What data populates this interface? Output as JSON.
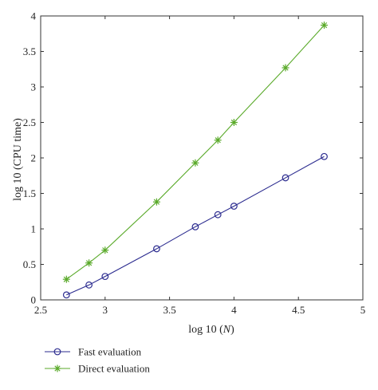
{
  "chart_data": {
    "type": "line",
    "title": "",
    "xlabel": "log 10 (",
    "xlabel_var": "N",
    "xlabel_close": ")",
    "ylabel": "log 10 (CPU time)",
    "xlim": [
      2.5,
      5
    ],
    "ylim": [
      0,
      4
    ],
    "xticks": [
      "2.5",
      "3",
      "3.5",
      "4",
      "4.5",
      "5"
    ],
    "yticks": [
      "0",
      "0.5",
      "1",
      "1.5",
      "2",
      "2.5",
      "3",
      "3.5",
      "4"
    ],
    "grid": false,
    "legend_position": "below-left",
    "series": [
      {
        "name": "Fast evaluation",
        "color": "#2b2b8f",
        "marker": "circle",
        "x": [
          2.7,
          2.875,
          3.0,
          3.4,
          3.7,
          3.875,
          4.0,
          4.4,
          4.7
        ],
        "y": [
          0.07,
          0.21,
          0.33,
          0.72,
          1.03,
          1.2,
          1.32,
          1.72,
          2.02
        ]
      },
      {
        "name": "Direct evaluation",
        "color": "#5aaa2a",
        "marker": "asterisk",
        "x": [
          2.7,
          2.875,
          3.0,
          3.4,
          3.7,
          3.875,
          4.0,
          4.4,
          4.7
        ],
        "y": [
          0.29,
          0.52,
          0.7,
          1.38,
          1.93,
          2.25,
          2.5,
          3.27,
          3.87
        ]
      }
    ]
  }
}
